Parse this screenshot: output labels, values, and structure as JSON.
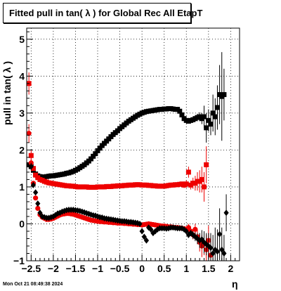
{
  "title": "Fitted pull in tan( λ ) for Global Rec All EtapT",
  "timestamp": "Mon Oct 21 08:49:38 2024",
  "chart_data": {
    "type": "scatter",
    "title": "Fitted pull in tan( λ ) for Global Rec All EtapT",
    "xlabel": "η",
    "ylabel": "pull in tan( λ )",
    "xlim": [
      -2.6,
      2.2
    ],
    "ylim": [
      -1,
      5.3
    ],
    "grid": true,
    "x_ticks": [
      -2.5,
      -2,
      -1.5,
      -1,
      -0.5,
      0,
      0.5,
      1,
      1.5,
      2
    ],
    "x_tick_labels": [
      "−2.5",
      "−2",
      "−1.5",
      "−1",
      "−0.5",
      "0",
      "0.5",
      "1",
      "1.5",
      "2"
    ],
    "y_ticks": [
      -1,
      0,
      1,
      2,
      3,
      4,
      5
    ],
    "y_tick_labels": [
      "−1",
      "0",
      "1",
      "2",
      "3",
      "4",
      "5"
    ],
    "series": [
      {
        "color": "#000000",
        "marker": "square",
        "x": [
          -2.55,
          -2.5,
          -2.45,
          -2.4,
          -2.35,
          -2.3,
          -2.25,
          -2.2,
          -2.15,
          -2.1,
          -2.05,
          -2.0,
          -1.95,
          -1.9,
          -1.85,
          -1.8,
          -1.75,
          -1.7,
          -1.65,
          -1.6,
          -1.55,
          -1.5,
          -1.45,
          -1.4,
          -1.35,
          -1.3,
          -1.25,
          -1.2,
          -1.15,
          -1.1,
          -1.05,
          -1.0,
          -0.95,
          -0.9,
          -0.85,
          -0.8,
          -0.75,
          -0.7,
          -0.65,
          -0.6,
          -0.55,
          -0.5,
          -0.45,
          -0.4,
          -0.35,
          -0.3,
          -0.25,
          -0.2,
          -0.15,
          -0.1,
          -0.05,
          0.0,
          0.05,
          0.1,
          0.15,
          0.2,
          0.25,
          0.3,
          0.35,
          0.4,
          0.45,
          0.5,
          0.55,
          0.6,
          0.65,
          0.7,
          0.75,
          0.8,
          0.85,
          0.9,
          0.95,
          1.0,
          1.05,
          1.1,
          1.15,
          1.2,
          1.25,
          1.3,
          1.35,
          1.4,
          1.45,
          1.5,
          1.55,
          1.6,
          1.65,
          1.7,
          1.75,
          1.8,
          1.85
        ],
        "y": [
          1.6,
          1.55,
          1.45,
          1.35,
          1.3,
          1.28,
          1.27,
          1.27,
          1.28,
          1.29,
          1.3,
          1.3,
          1.31,
          1.32,
          1.33,
          1.34,
          1.35,
          1.37,
          1.38,
          1.4,
          1.42,
          1.45,
          1.48,
          1.52,
          1.56,
          1.6,
          1.65,
          1.7,
          1.76,
          1.83,
          1.9,
          1.98,
          2.05,
          2.12,
          2.18,
          2.24,
          2.3,
          2.36,
          2.42,
          2.47,
          2.52,
          2.58,
          2.63,
          2.68,
          2.73,
          2.78,
          2.82,
          2.86,
          2.9,
          2.94,
          2.97,
          3.0,
          3.02,
          3.04,
          3.05,
          3.06,
          3.07,
          3.08,
          3.09,
          3.1,
          3.1,
          3.11,
          3.11,
          3.12,
          3.12,
          3.11,
          3.1,
          3.1,
          3.05,
          2.95,
          2.85,
          2.8,
          2.78,
          2.8,
          2.82,
          2.85,
          2.88,
          2.9,
          2.85,
          2.9,
          2.6,
          2.8,
          2.7,
          3.0,
          2.9,
          3.15,
          3.5,
          3.45,
          3.5
        ],
        "err": [
          0.05,
          0.04,
          0.03,
          0.02,
          0.02,
          0.02,
          0.02,
          0.02,
          0.02,
          0.02,
          0.02,
          0.02,
          0.02,
          0.02,
          0.02,
          0.02,
          0.02,
          0.02,
          0.02,
          0.02,
          0.02,
          0.02,
          0.02,
          0.02,
          0.02,
          0.02,
          0.02,
          0.02,
          0.02,
          0.02,
          0.02,
          0.02,
          0.02,
          0.02,
          0.02,
          0.02,
          0.02,
          0.02,
          0.02,
          0.02,
          0.02,
          0.02,
          0.02,
          0.02,
          0.02,
          0.02,
          0.02,
          0.02,
          0.02,
          0.02,
          0.02,
          0.02,
          0.02,
          0.02,
          0.02,
          0.02,
          0.02,
          0.02,
          0.02,
          0.02,
          0.02,
          0.02,
          0.02,
          0.02,
          0.02,
          0.02,
          0.02,
          0.02,
          0.03,
          0.05,
          0.06,
          0.05,
          0.05,
          0.05,
          0.06,
          0.08,
          0.1,
          0.12,
          0.15,
          0.3,
          0.4,
          0.3,
          0.3,
          0.5,
          0.5,
          0.6,
          0.8,
          1.2,
          0.7
        ]
      },
      {
        "color": "#ee0000",
        "marker": "square",
        "x": [
          -2.55,
          -2.5,
          -2.45,
          -2.4,
          -2.35,
          -2.3,
          -2.25,
          -2.2,
          -2.15,
          -2.1,
          -2.05,
          -2.0,
          -1.95,
          -1.9,
          -1.85,
          -1.8,
          -1.75,
          -1.7,
          -1.65,
          -1.6,
          -1.55,
          -1.5,
          -1.45,
          -1.4,
          -1.35,
          -1.3,
          -1.25,
          -1.2,
          -1.15,
          -1.1,
          -1.05,
          -1.0,
          -0.95,
          -0.9,
          -0.85,
          -0.8,
          -0.75,
          -0.7,
          -0.65,
          -0.6,
          -0.55,
          -0.5,
          -0.45,
          -0.4,
          -0.35,
          -0.3,
          -0.25,
          -0.2,
          -0.15,
          -0.1,
          -0.05,
          0.0,
          0.05,
          0.1,
          0.15,
          0.2,
          0.25,
          0.3,
          0.35,
          0.4,
          0.45,
          0.5,
          0.55,
          0.6,
          0.65,
          0.7,
          0.75,
          0.8,
          0.85,
          0.9,
          0.95,
          1.0,
          1.05,
          1.1,
          1.15,
          1.2,
          1.25,
          1.3,
          1.35,
          1.4,
          1.45
        ],
        "y": [
          3.8,
          1.85,
          1.5,
          1.32,
          1.25,
          1.2,
          1.18,
          1.15,
          1.13,
          1.11,
          1.1,
          1.09,
          1.08,
          1.07,
          1.06,
          1.05,
          1.04,
          1.03,
          1.03,
          1.02,
          1.02,
          1.01,
          1.0,
          1.0,
          1.0,
          1.0,
          1.0,
          0.99,
          0.99,
          0.99,
          0.99,
          1.0,
          1.0,
          1.0,
          1.0,
          1.01,
          1.01,
          1.01,
          1.02,
          1.02,
          1.03,
          1.03,
          1.03,
          1.04,
          1.04,
          1.05,
          1.05,
          1.05,
          1.06,
          1.06,
          1.06,
          1.05,
          1.05,
          1.05,
          1.04,
          1.04,
          1.03,
          1.03,
          1.02,
          1.02,
          1.02,
          1.02,
          1.03,
          1.04,
          1.05,
          1.05,
          1.06,
          1.06,
          1.07,
          1.08,
          1.05,
          1.08,
          1.4,
          1.05,
          1.1,
          1.1,
          1.15,
          1.15,
          1.2,
          1.0,
          1.6
        ],
        "err": [
          0.3,
          0.15,
          0.05,
          0.03,
          0.02,
          0.02,
          0.02,
          0.02,
          0.02,
          0.02,
          0.02,
          0.02,
          0.02,
          0.02,
          0.02,
          0.02,
          0.02,
          0.02,
          0.02,
          0.02,
          0.02,
          0.02,
          0.02,
          0.02,
          0.02,
          0.02,
          0.02,
          0.02,
          0.02,
          0.02,
          0.02,
          0.02,
          0.02,
          0.02,
          0.02,
          0.02,
          0.02,
          0.02,
          0.02,
          0.02,
          0.02,
          0.02,
          0.02,
          0.02,
          0.02,
          0.02,
          0.02,
          0.02,
          0.02,
          0.02,
          0.02,
          0.02,
          0.02,
          0.02,
          0.02,
          0.02,
          0.02,
          0.02,
          0.02,
          0.02,
          0.02,
          0.02,
          0.02,
          0.02,
          0.02,
          0.02,
          0.03,
          0.03,
          0.04,
          0.06,
          0.08,
          0.1,
          0.15,
          0.12,
          0.15,
          0.2,
          0.25,
          0.3,
          0.35,
          0.4,
          0.5
        ]
      },
      {
        "color": "#ee0000",
        "marker": "circle",
        "x": [
          -2.55,
          -2.5,
          -2.45,
          -2.4,
          -2.35,
          -2.3,
          -2.25,
          -2.2,
          -2.15,
          -2.1,
          -2.05,
          -2.0,
          -1.95,
          -1.9,
          -1.85,
          -1.8,
          -1.75,
          -1.7,
          -1.65,
          -1.6,
          -1.55,
          -1.5,
          -1.45,
          -1.4,
          -1.35,
          -1.3,
          -1.25,
          -1.2,
          -1.15,
          -1.1,
          -1.05,
          -1.0,
          -0.95,
          -0.9,
          -0.85,
          -0.8,
          -0.75,
          -0.7,
          -0.65,
          -0.6,
          -0.55,
          -0.5,
          -0.45,
          -0.4,
          -0.35,
          -0.3,
          -0.25,
          -0.2,
          -0.15,
          -0.1,
          -0.05,
          0.0,
          0.05,
          0.1,
          0.15,
          0.2,
          0.25,
          0.3,
          0.35,
          0.4,
          0.45,
          0.5,
          0.55,
          0.6,
          0.65,
          0.7,
          0.75,
          0.8,
          0.85,
          0.9,
          0.95,
          1.0,
          1.05,
          1.1,
          1.15,
          1.2,
          1.25,
          1.3,
          1.35,
          1.4,
          1.45,
          1.5,
          1.55
        ],
        "y": [
          2.45,
          1.65,
          1.1,
          0.7,
          0.42,
          0.25,
          0.18,
          0.15,
          0.12,
          0.12,
          0.13,
          0.15,
          0.18,
          0.21,
          0.24,
          0.26,
          0.27,
          0.28,
          0.28,
          0.27,
          0.26,
          0.24,
          0.22,
          0.2,
          0.18,
          0.16,
          0.14,
          0.12,
          0.1,
          0.09,
          0.08,
          0.07,
          0.06,
          0.06,
          0.05,
          0.05,
          0.04,
          0.04,
          0.03,
          0.03,
          0.02,
          0.02,
          0.02,
          0.01,
          0.01,
          0.0,
          0.0,
          -0.01,
          -0.01,
          -0.02,
          -0.02,
          -0.03,
          -0.02,
          -0.01,
          0.0,
          -0.01,
          -0.02,
          -0.03,
          -0.04,
          -0.05,
          -0.06,
          -0.06,
          -0.07,
          -0.08,
          -0.08,
          -0.09,
          -0.1,
          -0.1,
          -0.11,
          -0.12,
          -0.13,
          -0.15,
          -0.1,
          -0.2,
          -0.3,
          -0.15,
          -0.35,
          -0.5,
          -0.6,
          -0.55,
          -0.7,
          -0.45,
          -0.85
        ],
        "err": [
          0.25,
          0.12,
          0.05,
          0.03,
          0.02,
          0.02,
          0.02,
          0.02,
          0.02,
          0.02,
          0.02,
          0.02,
          0.02,
          0.02,
          0.02,
          0.02,
          0.02,
          0.02,
          0.02,
          0.02,
          0.02,
          0.02,
          0.02,
          0.02,
          0.02,
          0.02,
          0.02,
          0.02,
          0.02,
          0.02,
          0.02,
          0.02,
          0.02,
          0.02,
          0.02,
          0.02,
          0.02,
          0.02,
          0.02,
          0.02,
          0.02,
          0.02,
          0.02,
          0.02,
          0.02,
          0.02,
          0.02,
          0.02,
          0.02,
          0.02,
          0.02,
          0.02,
          0.02,
          0.02,
          0.02,
          0.02,
          0.02,
          0.02,
          0.02,
          0.02,
          0.02,
          0.02,
          0.02,
          0.02,
          0.02,
          0.02,
          0.03,
          0.03,
          0.04,
          0.05,
          0.06,
          0.08,
          0.1,
          0.1,
          0.12,
          0.15,
          0.2,
          0.25,
          0.3,
          0.3,
          0.4,
          0.4,
          0.5
        ]
      },
      {
        "color": "#000000",
        "marker": "diamond",
        "x": [
          -2.5,
          -2.45,
          -2.4,
          -2.35,
          -2.3,
          -2.25,
          -2.2,
          -2.15,
          -2.1,
          -2.05,
          -2.0,
          -1.95,
          -1.9,
          -1.85,
          -1.8,
          -1.75,
          -1.7,
          -1.65,
          -1.6,
          -1.55,
          -1.5,
          -1.45,
          -1.4,
          -1.35,
          -1.3,
          -1.25,
          -1.2,
          -1.15,
          -1.1,
          -1.05,
          -1.0,
          -0.95,
          -0.9,
          -0.85,
          -0.8,
          -0.75,
          -0.7,
          -0.65,
          -0.6,
          -0.55,
          -0.5,
          -0.45,
          -0.4,
          -0.35,
          -0.3,
          -0.25,
          -0.2,
          -0.15,
          -0.1,
          -0.05,
          0.0,
          0.05,
          0.1,
          0.15,
          0.2,
          0.25,
          0.3,
          0.35,
          0.4,
          0.45,
          0.5,
          0.55,
          0.6,
          0.65,
          0.7,
          0.75,
          0.8,
          0.85,
          0.9,
          0.95,
          1.0,
          1.05,
          1.1,
          1.15,
          1.2,
          1.25,
          1.3,
          1.35,
          1.4,
          1.45,
          1.5,
          1.55,
          1.6,
          1.65,
          1.7,
          1.75,
          1.8,
          1.85,
          1.9
        ],
        "y": [
          1.55,
          1.05,
          0.85,
          0.55,
          0.3,
          0.2,
          0.18,
          0.16,
          0.16,
          0.18,
          0.2,
          0.24,
          0.28,
          0.3,
          0.33,
          0.35,
          0.37,
          0.38,
          0.38,
          0.38,
          0.37,
          0.36,
          0.35,
          0.33,
          0.31,
          0.29,
          0.27,
          0.25,
          0.23,
          0.22,
          0.2,
          0.18,
          0.17,
          0.15,
          0.14,
          0.13,
          0.12,
          0.11,
          0.1,
          0.09,
          0.08,
          0.07,
          0.07,
          0.06,
          0.05,
          0.05,
          0.04,
          0.03,
          0.02,
          0.0,
          -0.2,
          -0.35,
          -0.45,
          -0.1,
          -0.15,
          -0.25,
          -0.2,
          -0.15,
          -0.12,
          -0.12,
          -0.12,
          -0.13,
          -0.12,
          -0.1,
          -0.1,
          -0.11,
          -0.12,
          -0.12,
          -0.12,
          -0.15,
          -0.2,
          -0.3,
          -0.25,
          -0.3,
          -0.35,
          -0.4,
          -0.45,
          -0.42,
          -0.5,
          -0.55,
          -0.6,
          -0.65,
          -0.8,
          -0.7,
          -0.75,
          -0.28,
          -0.7,
          -0.8,
          0.3
        ],
        "err": [
          0.1,
          0.06,
          0.04,
          0.03,
          0.02,
          0.02,
          0.02,
          0.02,
          0.02,
          0.02,
          0.02,
          0.02,
          0.02,
          0.02,
          0.02,
          0.02,
          0.02,
          0.02,
          0.02,
          0.02,
          0.02,
          0.02,
          0.02,
          0.02,
          0.02,
          0.02,
          0.02,
          0.02,
          0.02,
          0.02,
          0.02,
          0.02,
          0.02,
          0.02,
          0.02,
          0.02,
          0.02,
          0.02,
          0.02,
          0.02,
          0.02,
          0.02,
          0.02,
          0.02,
          0.02,
          0.02,
          0.02,
          0.02,
          0.02,
          0.03,
          0.05,
          0.06,
          0.06,
          0.04,
          0.04,
          0.04,
          0.04,
          0.03,
          0.03,
          0.03,
          0.03,
          0.03,
          0.03,
          0.03,
          0.03,
          0.03,
          0.03,
          0.04,
          0.04,
          0.05,
          0.06,
          0.08,
          0.08,
          0.1,
          0.12,
          0.15,
          0.2,
          0.25,
          0.3,
          0.3,
          0.35,
          0.4,
          0.5,
          0.6,
          0.6,
          0.7,
          0.6,
          0.5,
          0.5
        ]
      }
    ]
  }
}
